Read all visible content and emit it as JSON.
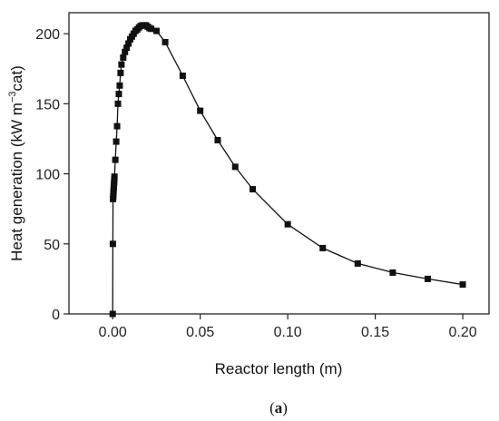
{
  "chart_data": {
    "type": "line",
    "xlabel": "Reactor length (m)",
    "ylabel_main": "Heat generation (kW m",
    "ylabel_sup": "−3",
    "ylabel_end": "cat)",
    "caption_open": "(",
    "caption_bold": "a",
    "caption_close": ")",
    "xlim": [
      -0.025,
      0.215
    ],
    "ylim": [
      0,
      215
    ],
    "x_ticks": [
      0.0,
      0.05,
      0.1,
      0.15,
      0.2
    ],
    "x_tick_labels": [
      "0.00",
      "0.05",
      "0.10",
      "0.15",
      "0.20"
    ],
    "y_ticks": [
      0,
      50,
      100,
      150,
      200
    ],
    "y_tick_labels": [
      "0",
      "50",
      "100",
      "150",
      "200"
    ],
    "marker": "square",
    "series": [
      {
        "x": [
          0.0,
          0.0001,
          0.0002,
          0.0003,
          0.0004,
          0.0005,
          0.0006,
          0.0007,
          0.0008,
          0.0009,
          0.001,
          0.0015,
          0.002,
          0.0025,
          0.003,
          0.0035,
          0.004,
          0.0045,
          0.005,
          0.006,
          0.007,
          0.008,
          0.009,
          0.01,
          0.011,
          0.012,
          0.013,
          0.014,
          0.015,
          0.016,
          0.017,
          0.018,
          0.019,
          0.02,
          0.021,
          0.022,
          0.025,
          0.03,
          0.04,
          0.05,
          0.06,
          0.07,
          0.08,
          0.1,
          0.12,
          0.14,
          0.16,
          0.18,
          0.2
        ],
        "y": [
          0,
          50,
          82,
          84,
          86,
          88,
          90,
          92,
          94,
          96,
          98,
          110,
          123,
          134,
          150,
          157,
          163,
          172,
          178,
          183,
          187,
          190,
          193,
          196,
          198,
          200,
          202,
          203,
          204.5,
          205.5,
          206,
          206,
          206,
          205,
          204,
          203.5,
          202,
          194,
          170,
          145,
          124,
          105,
          89,
          64,
          47,
          36,
          29.5,
          25,
          21
        ]
      }
    ]
  }
}
